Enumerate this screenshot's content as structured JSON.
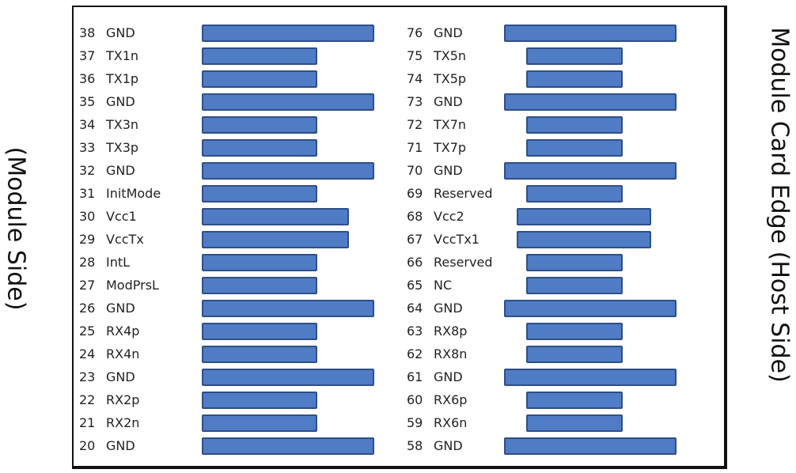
{
  "labels": {
    "module_side": "(Module Side)",
    "host_side": "Module Card Edge (Host Side)"
  },
  "colors": {
    "pad_fill": "#4f7cc4",
    "pad_border": "#2f4f86",
    "frame": "#111111"
  },
  "pad_types": {
    "long": "ground pad (longest)",
    "medium": "power pad",
    "short": "signal pad"
  },
  "columns": {
    "left": [
      {
        "num": "38",
        "name": "GND",
        "pad": "long"
      },
      {
        "num": "37",
        "name": "TX1n",
        "pad": "short"
      },
      {
        "num": "36",
        "name": "TX1p",
        "pad": "short"
      },
      {
        "num": "35",
        "name": "GND",
        "pad": "long"
      },
      {
        "num": "34",
        "name": "TX3n",
        "pad": "short"
      },
      {
        "num": "33",
        "name": "TX3p",
        "pad": "short"
      },
      {
        "num": "32",
        "name": "GND",
        "pad": "long"
      },
      {
        "num": "31",
        "name": "InitMode",
        "pad": "short"
      },
      {
        "num": "30",
        "name": "Vcc1",
        "pad": "medium"
      },
      {
        "num": "29",
        "name": "VccTx",
        "pad": "medium"
      },
      {
        "num": "28",
        "name": "IntL",
        "pad": "short"
      },
      {
        "num": "27",
        "name": "ModPrsL",
        "pad": "short"
      },
      {
        "num": "26",
        "name": "GND",
        "pad": "long"
      },
      {
        "num": "25",
        "name": "RX4p",
        "pad": "short"
      },
      {
        "num": "24",
        "name": "RX4n",
        "pad": "short"
      },
      {
        "num": "23",
        "name": "GND",
        "pad": "long"
      },
      {
        "num": "22",
        "name": "RX2p",
        "pad": "short"
      },
      {
        "num": "21",
        "name": "RX2n",
        "pad": "short"
      },
      {
        "num": "20",
        "name": "GND",
        "pad": "long"
      }
    ],
    "right": [
      {
        "num": "76",
        "name": "GND",
        "pad": "long"
      },
      {
        "num": "75",
        "name": "TX5n",
        "pad": "short"
      },
      {
        "num": "74",
        "name": "TX5p",
        "pad": "short"
      },
      {
        "num": "73",
        "name": "GND",
        "pad": "long"
      },
      {
        "num": "72",
        "name": "TX7n",
        "pad": "short"
      },
      {
        "num": "71",
        "name": "TX7p",
        "pad": "short"
      },
      {
        "num": "70",
        "name": "GND",
        "pad": "long"
      },
      {
        "num": "69",
        "name": "Reserved",
        "pad": "short"
      },
      {
        "num": "68",
        "name": "Vcc2",
        "pad": "medium"
      },
      {
        "num": "67",
        "name": "VccTx1",
        "pad": "medium"
      },
      {
        "num": "66",
        "name": "Reserved",
        "pad": "short"
      },
      {
        "num": "65",
        "name": "NC",
        "pad": "short"
      },
      {
        "num": "64",
        "name": "GND",
        "pad": "long"
      },
      {
        "num": "63",
        "name": "RX8p",
        "pad": "short"
      },
      {
        "num": "62",
        "name": "RX8n",
        "pad": "short"
      },
      {
        "num": "61",
        "name": "GND",
        "pad": "long"
      },
      {
        "num": "60",
        "name": "RX6p",
        "pad": "short"
      },
      {
        "num": "59",
        "name": "RX6n",
        "pad": "short"
      },
      {
        "num": "58",
        "name": "GND",
        "pad": "long"
      }
    ]
  }
}
